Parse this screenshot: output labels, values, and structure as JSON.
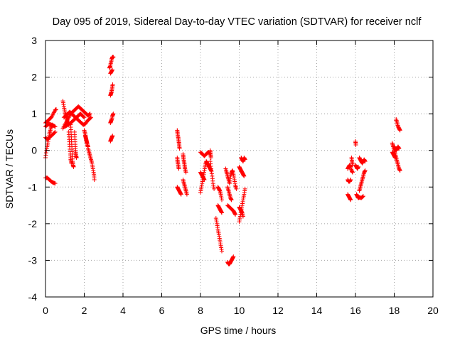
{
  "chart_data": {
    "type": "scatter",
    "title": "Day 095 of 2019, Sidereal Day-to-day VTEC variation (SDTVAR) for receiver nclf",
    "xlabel": "GPS time / hours",
    "ylabel": "SDTVAR / TECUs",
    "xlim": [
      0,
      20
    ],
    "ylim": [
      -4,
      3
    ],
    "xticks": [
      0,
      2,
      4,
      6,
      8,
      10,
      12,
      14,
      16,
      18,
      20
    ],
    "yticks": [
      -4,
      -3,
      -2,
      -1,
      0,
      1,
      2,
      3
    ],
    "grid": true,
    "marker": "plus",
    "marker_color": "#ff0000",
    "segments": [
      [
        [
          0.0,
          -0.2
        ],
        [
          0.05,
          0.0
        ],
        [
          0.1,
          0.15
        ],
        [
          0.15,
          0.3
        ],
        [
          0.2,
          0.45
        ],
        [
          0.25,
          0.55
        ],
        [
          0.3,
          0.65
        ],
        [
          0.35,
          0.7
        ]
      ],
      [
        [
          0.0,
          0.75
        ],
        [
          0.1,
          0.8
        ],
        [
          0.2,
          0.85
        ],
        [
          0.3,
          0.9
        ],
        [
          0.4,
          1.0
        ],
        [
          0.5,
          1.1
        ],
        [
          0.55,
          1.12
        ]
      ],
      [
        [
          0.0,
          0.35
        ],
        [
          0.1,
          0.3
        ],
        [
          0.2,
          0.35
        ],
        [
          0.3,
          0.4
        ],
        [
          0.4,
          0.45
        ],
        [
          0.5,
          0.5
        ]
      ],
      [
        [
          0.0,
          0.65
        ],
        [
          0.1,
          0.7
        ],
        [
          0.2,
          0.72
        ],
        [
          0.3,
          0.7
        ],
        [
          0.4,
          0.68
        ],
        [
          0.5,
          0.65
        ]
      ],
      [
        [
          0.0,
          -0.75
        ],
        [
          0.1,
          -0.75
        ],
        [
          0.2,
          -0.8
        ],
        [
          0.3,
          -0.85
        ],
        [
          0.4,
          -0.88
        ],
        [
          0.5,
          -0.9
        ]
      ],
      [
        [
          0.9,
          0.6
        ],
        [
          1.0,
          0.7
        ],
        [
          1.1,
          0.8
        ],
        [
          1.2,
          0.9
        ],
        [
          1.3,
          1.0
        ],
        [
          1.4,
          1.05
        ],
        [
          1.5,
          1.1
        ],
        [
          1.6,
          1.15
        ],
        [
          1.7,
          1.2
        ],
        [
          1.8,
          1.15
        ],
        [
          1.9,
          1.1
        ],
        [
          2.0,
          1.05
        ],
        [
          2.1,
          1.0
        ],
        [
          2.2,
          0.95
        ],
        [
          2.3,
          1.0
        ]
      ],
      [
        [
          0.9,
          1.35
        ],
        [
          0.95,
          1.2
        ],
        [
          1.0,
          1.05
        ],
        [
          1.05,
          0.95
        ],
        [
          1.1,
          0.85
        ],
        [
          1.15,
          0.75
        ],
        [
          1.2,
          0.7
        ]
      ],
      [
        [
          0.95,
          0.9
        ],
        [
          1.05,
          0.95
        ],
        [
          1.15,
          1.0
        ],
        [
          1.25,
          1.05
        ],
        [
          1.35,
          1.0
        ],
        [
          1.45,
          0.95
        ],
        [
          1.55,
          0.9
        ],
        [
          1.65,
          0.85
        ],
        [
          1.75,
          0.8
        ],
        [
          1.85,
          0.75
        ],
        [
          1.95,
          0.7
        ],
        [
          2.05,
          0.72
        ],
        [
          2.15,
          0.8
        ],
        [
          2.25,
          0.85
        ],
        [
          2.35,
          0.9
        ]
      ],
      [
        [
          1.0,
          0.65
        ],
        [
          1.1,
          0.68
        ],
        [
          1.2,
          0.72
        ],
        [
          1.3,
          0.75
        ],
        [
          1.4,
          0.8
        ],
        [
          1.5,
          0.85
        ],
        [
          1.6,
          0.9
        ],
        [
          1.7,
          0.95
        ],
        [
          1.8,
          1.0
        ],
        [
          1.9,
          0.95
        ],
        [
          2.0,
          0.9
        ]
      ],
      [
        [
          1.3,
          0.7
        ],
        [
          1.32,
          0.5
        ],
        [
          1.34,
          0.3
        ],
        [
          1.36,
          0.1
        ],
        [
          1.38,
          -0.1
        ],
        [
          1.4,
          -0.3
        ],
        [
          1.42,
          -0.4
        ],
        [
          1.45,
          -0.45
        ]
      ],
      [
        [
          1.5,
          0.5
        ],
        [
          1.52,
          0.3
        ],
        [
          1.54,
          0.1
        ],
        [
          1.56,
          -0.05
        ],
        [
          1.58,
          -0.15
        ],
        [
          1.6,
          -0.2
        ]
      ],
      [
        [
          1.2,
          0.5
        ],
        [
          1.22,
          0.3
        ],
        [
          1.25,
          0.1
        ],
        [
          1.28,
          -0.1
        ],
        [
          1.3,
          -0.25
        ],
        [
          1.33,
          -0.35
        ]
      ],
      [
        [
          2.05,
          0.4
        ],
        [
          2.1,
          0.3
        ],
        [
          2.15,
          0.2
        ],
        [
          2.2,
          0.05
        ],
        [
          2.25,
          -0.05
        ],
        [
          2.3,
          -0.15
        ],
        [
          2.35,
          -0.25
        ],
        [
          2.4,
          -0.35
        ],
        [
          2.45,
          -0.5
        ],
        [
          2.5,
          -0.65
        ],
        [
          2.52,
          -0.8
        ]
      ],
      [
        [
          2.0,
          0.55
        ],
        [
          2.05,
          0.45
        ],
        [
          2.08,
          0.35
        ],
        [
          2.12,
          0.25
        ],
        [
          2.16,
          0.15
        ],
        [
          2.2,
          0.1
        ]
      ],
      [
        [
          3.3,
          2.25
        ],
        [
          3.34,
          2.3
        ],
        [
          3.38,
          2.4
        ],
        [
          3.42,
          2.5
        ],
        [
          3.46,
          2.55
        ],
        [
          3.5,
          2.55
        ]
      ],
      [
        [
          3.35,
          2.1
        ],
        [
          3.4,
          2.15
        ],
        [
          3.45,
          2.2
        ]
      ],
      [
        [
          3.35,
          1.5
        ],
        [
          3.38,
          1.55
        ],
        [
          3.41,
          1.6
        ],
        [
          3.44,
          1.7
        ],
        [
          3.47,
          1.8
        ]
      ],
      [
        [
          3.35,
          0.75
        ],
        [
          3.38,
          0.8
        ],
        [
          3.42,
          0.85
        ],
        [
          3.46,
          0.95
        ],
        [
          3.5,
          1.0
        ]
      ],
      [
        [
          3.35,
          0.25
        ],
        [
          3.38,
          0.3
        ],
        [
          3.42,
          0.35
        ],
        [
          3.46,
          0.4
        ]
      ],
      [
        [
          6.8,
          0.55
        ],
        [
          6.82,
          0.45
        ],
        [
          6.85,
          0.35
        ],
        [
          6.88,
          0.25
        ],
        [
          6.9,
          0.15
        ],
        [
          6.92,
          0.05
        ]
      ],
      [
        [
          6.8,
          -0.2
        ],
        [
          6.82,
          -0.3
        ],
        [
          6.85,
          -0.4
        ],
        [
          6.88,
          -0.5
        ]
      ],
      [
        [
          6.8,
          -1.0
        ],
        [
          6.85,
          -1.05
        ],
        [
          6.9,
          -1.1
        ],
        [
          6.95,
          -1.15
        ],
        [
          7.0,
          -1.2
        ]
      ],
      [
        [
          7.1,
          -0.1
        ],
        [
          7.12,
          -0.2
        ],
        [
          7.15,
          -0.3
        ],
        [
          7.18,
          -0.4
        ],
        [
          7.2,
          -0.5
        ],
        [
          7.25,
          -0.6
        ]
      ],
      [
        [
          7.1,
          -0.8
        ],
        [
          7.15,
          -0.9
        ],
        [
          7.2,
          -1.0
        ],
        [
          7.25,
          -1.1
        ],
        [
          7.3,
          -1.2
        ]
      ],
      [
        [
          8.0,
          -1.15
        ],
        [
          8.05,
          -1.0
        ],
        [
          8.1,
          -0.85
        ],
        [
          8.15,
          -0.7
        ],
        [
          8.2,
          -0.55
        ],
        [
          8.25,
          -0.4
        ],
        [
          8.3,
          -0.3
        ],
        [
          8.35,
          -0.35
        ],
        [
          8.4,
          -0.4
        ],
        [
          8.45,
          -0.45
        ],
        [
          8.5,
          -0.5
        ],
        [
          8.55,
          -0.55
        ]
      ],
      [
        [
          8.0,
          -0.05
        ],
        [
          8.1,
          -0.1
        ],
        [
          8.2,
          -0.15
        ],
        [
          8.3,
          -0.1
        ],
        [
          8.4,
          -0.05
        ],
        [
          8.5,
          -0.1
        ]
      ],
      [
        [
          8.0,
          -0.6
        ],
        [
          8.05,
          -0.65
        ],
        [
          8.1,
          -0.7
        ],
        [
          8.15,
          -0.75
        ],
        [
          8.2,
          -0.8
        ]
      ],
      [
        [
          8.5,
          -0.3
        ],
        [
          8.55,
          -0.5
        ],
        [
          8.6,
          -0.7
        ],
        [
          8.65,
          -0.9
        ],
        [
          8.7,
          -1.05
        ]
      ],
      [
        [
          8.5,
          0.0
        ],
        [
          8.52,
          -0.1
        ],
        [
          8.54,
          -0.2
        ]
      ],
      [
        [
          8.8,
          -1.85
        ],
        [
          8.85,
          -2.0
        ],
        [
          8.9,
          -2.15
        ],
        [
          8.95,
          -2.3
        ],
        [
          9.0,
          -2.45
        ],
        [
          9.05,
          -2.6
        ],
        [
          9.1,
          -2.75
        ]
      ],
      [
        [
          8.9,
          -1.0
        ],
        [
          8.95,
          -1.05
        ],
        [
          9.0,
          -1.1
        ],
        [
          9.05,
          -1.2
        ],
        [
          9.1,
          -1.35
        ]
      ],
      [
        [
          8.9,
          -1.5
        ],
        [
          8.95,
          -1.55
        ],
        [
          9.0,
          -1.6
        ],
        [
          9.05,
          -1.65
        ],
        [
          9.1,
          -1.7
        ]
      ],
      [
        [
          9.3,
          -0.5
        ],
        [
          9.35,
          -0.6
        ],
        [
          9.4,
          -0.7
        ],
        [
          9.45,
          -0.8
        ],
        [
          9.5,
          -0.9
        ],
        [
          9.55,
          -0.7
        ],
        [
          9.6,
          -0.6
        ],
        [
          9.65,
          -0.55
        ],
        [
          9.7,
          -0.65
        ],
        [
          9.75,
          -0.8
        ],
        [
          9.8,
          -0.95
        ],
        [
          9.85,
          -1.05
        ]
      ],
      [
        [
          9.4,
          -1.0
        ],
        [
          9.45,
          -1.1
        ],
        [
          9.5,
          -1.2
        ],
        [
          9.55,
          -1.3
        ],
        [
          9.6,
          -1.35
        ]
      ],
      [
        [
          9.4,
          -1.5
        ],
        [
          9.5,
          -1.55
        ],
        [
          9.6,
          -1.6
        ],
        [
          9.7,
          -1.65
        ],
        [
          9.75,
          -1.7
        ],
        [
          9.8,
          -1.75
        ]
      ],
      [
        [
          9.4,
          -3.05
        ],
        [
          9.45,
          -3.1
        ],
        [
          9.5,
          -3.1
        ],
        [
          9.55,
          -3.05
        ],
        [
          9.6,
          -3.0
        ],
        [
          9.65,
          -2.95
        ],
        [
          9.7,
          -2.9
        ]
      ],
      [
        [
          10.0,
          -0.45
        ],
        [
          10.05,
          -0.5
        ],
        [
          10.1,
          -0.55
        ],
        [
          10.15,
          -0.6
        ],
        [
          10.2,
          -0.65
        ],
        [
          10.25,
          -0.7
        ]
      ],
      [
        [
          10.1,
          -0.2
        ],
        [
          10.15,
          -0.25
        ],
        [
          10.2,
          -0.3
        ],
        [
          10.25,
          -0.2
        ],
        [
          10.3,
          -0.25
        ]
      ],
      [
        [
          10.0,
          -1.95
        ],
        [
          10.05,
          -1.8
        ],
        [
          10.1,
          -1.65
        ],
        [
          10.15,
          -1.5
        ],
        [
          10.2,
          -1.35
        ],
        [
          10.25,
          -1.2
        ],
        [
          10.3,
          -1.05
        ]
      ],
      [
        [
          10.0,
          -1.55
        ],
        [
          10.05,
          -1.6
        ],
        [
          10.1,
          -1.65
        ],
        [
          10.15,
          -1.7
        ],
        [
          10.2,
          -1.8
        ]
      ],
      [
        [
          15.6,
          -0.5
        ],
        [
          15.65,
          -0.45
        ],
        [
          15.7,
          -0.4
        ],
        [
          15.75,
          -0.45
        ],
        [
          15.8,
          -0.55
        ],
        [
          15.85,
          -0.6
        ]
      ],
      [
        [
          15.6,
          -0.8
        ],
        [
          15.65,
          -0.85
        ],
        [
          15.7,
          -0.85
        ],
        [
          15.75,
          -0.8
        ]
      ],
      [
        [
          15.6,
          -1.2
        ],
        [
          15.65,
          -1.25
        ],
        [
          15.7,
          -1.3
        ],
        [
          15.75,
          -1.35
        ]
      ],
      [
        [
          15.8,
          -0.2
        ],
        [
          15.82,
          -0.3
        ],
        [
          15.85,
          -0.4
        ]
      ],
      [
        [
          16.0,
          0.25
        ],
        [
          16.02,
          0.15
        ]
      ],
      [
        [
          16.0,
          -0.4
        ],
        [
          16.05,
          -0.45
        ],
        [
          16.1,
          -0.5
        ],
        [
          16.15,
          -0.45
        ]
      ],
      [
        [
          16.05,
          -1.2
        ],
        [
          16.1,
          -1.25
        ],
        [
          16.15,
          -1.3
        ],
        [
          16.2,
          -1.28
        ],
        [
          16.3,
          -1.3
        ],
        [
          16.4,
          -1.25
        ]
      ],
      [
        [
          16.2,
          -0.2
        ],
        [
          16.25,
          -0.25
        ],
        [
          16.3,
          -0.3
        ],
        [
          16.35,
          -0.35
        ],
        [
          16.4,
          -0.3
        ],
        [
          16.45,
          -0.25
        ],
        [
          16.5,
          -0.3
        ]
      ],
      [
        [
          16.2,
          -1.1
        ],
        [
          16.25,
          -1.0
        ],
        [
          16.3,
          -0.9
        ],
        [
          16.35,
          -0.8
        ],
        [
          16.4,
          -0.7
        ],
        [
          16.45,
          -0.6
        ],
        [
          16.5,
          -0.55
        ]
      ],
      [
        [
          17.9,
          0.2
        ],
        [
          17.95,
          0.1
        ],
        [
          18.0,
          0.0
        ],
        [
          18.05,
          -0.1
        ],
        [
          18.1,
          -0.2
        ],
        [
          18.15,
          -0.3
        ],
        [
          18.2,
          -0.4
        ],
        [
          18.25,
          -0.5
        ],
        [
          18.3,
          -0.55
        ]
      ],
      [
        [
          17.9,
          -0.05
        ],
        [
          17.95,
          -0.1
        ],
        [
          18.0,
          -0.15
        ],
        [
          18.05,
          -0.2
        ]
      ],
      [
        [
          18.0,
          0.1
        ],
        [
          18.05,
          0.05
        ],
        [
          18.1,
          0.0
        ],
        [
          18.15,
          0.05
        ],
        [
          18.2,
          0.1
        ],
        [
          18.25,
          0.05
        ]
      ],
      [
        [
          18.1,
          0.85
        ],
        [
          18.15,
          0.75
        ],
        [
          18.2,
          0.65
        ],
        [
          18.25,
          0.6
        ],
        [
          18.3,
          0.55
        ]
      ]
    ]
  }
}
